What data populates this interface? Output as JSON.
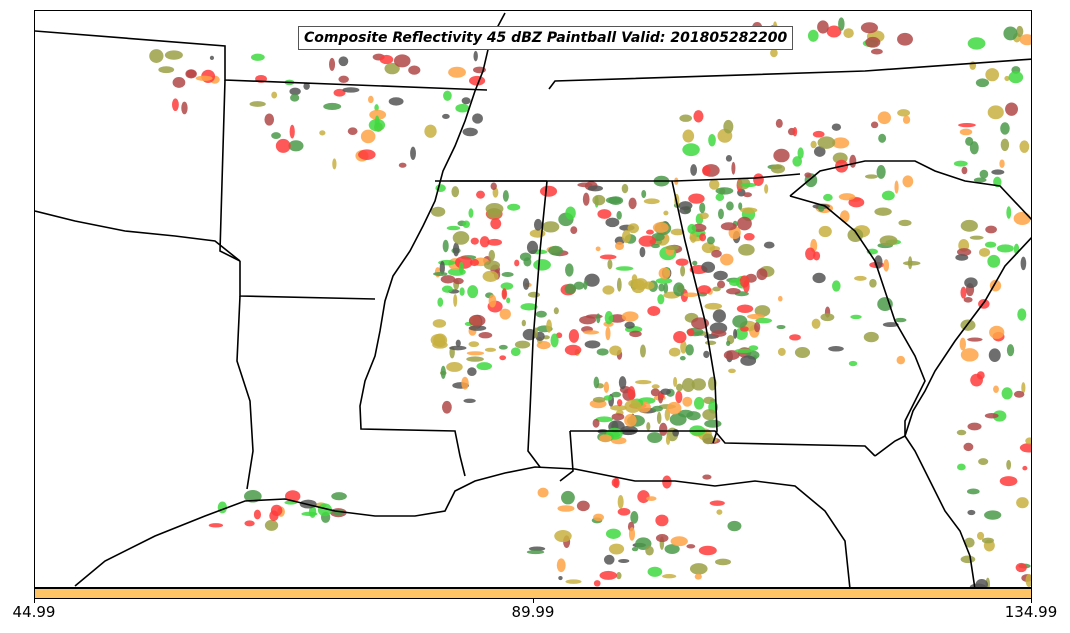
{
  "title": "Composite Reflectivity 45 dBZ Paintball Valid: 201805282200",
  "colorbar": {
    "color": "#ffc466",
    "ticks": [
      "44.99",
      "89.99",
      "134.99"
    ]
  },
  "member_colors": [
    "#ff3b3b",
    "#ffa347",
    "#3fd93f",
    "#9aa044",
    "#555555",
    "#b04848",
    "#4a9a4a",
    "#c8b040"
  ],
  "map_outline_color": "#000000"
}
